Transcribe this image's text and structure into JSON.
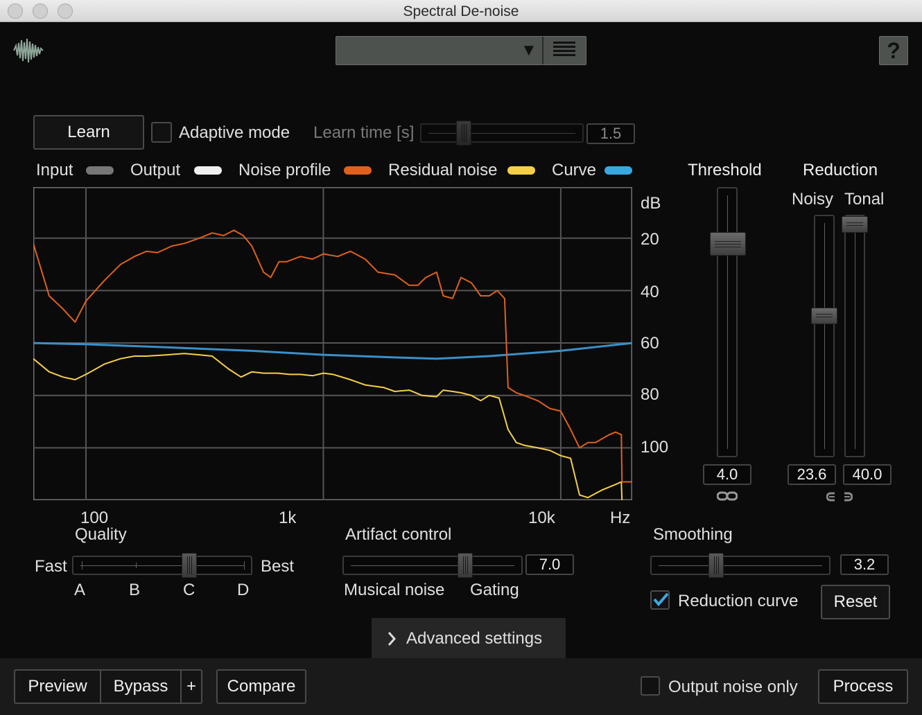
{
  "window": {
    "title": "Spectral De-noise"
  },
  "icons": {
    "logo": "waveform-logo-icon",
    "dropdown": "triangle-down-icon",
    "presets": "list-icon",
    "help": "question-icon",
    "link": "link-icon",
    "checkmark": "checkmark-icon",
    "chevron": "chevron-right-icon"
  },
  "colors": {
    "input": "#777777",
    "output": "#f0f0f0",
    "noise_profile": "#e0601e",
    "residual_noise": "#f6cf49",
    "curve": "#3a90c8",
    "check": "#3aa8e0"
  },
  "header": {
    "help_label": "?"
  },
  "learn": {
    "button_label": "Learn",
    "adaptive_label": "Adaptive mode",
    "adaptive_checked": false,
    "learn_time_label": "Learn time [s]",
    "learn_time_value": "1.5",
    "learn_time_fraction": 0.24
  },
  "legend": [
    {
      "label": "Input"
    },
    {
      "label": "Output"
    },
    {
      "label": "Noise profile"
    },
    {
      "label": "Residual noise"
    },
    {
      "label": "Curve"
    }
  ],
  "plot": {
    "y_unit": "dB",
    "y_ticks": [
      "20",
      "40",
      "60",
      "80",
      "100"
    ],
    "x_ticks": [
      "100",
      "1k",
      "10k"
    ],
    "x_unit": "Hz"
  },
  "chart_data": {
    "type": "line",
    "x_scale": "log",
    "xlim": [
      60,
      20000
    ],
    "ylim": [
      -120,
      -0.5
    ],
    "y_tick_values": [
      -20,
      -40,
      -60,
      -80,
      -100
    ],
    "x_tick_values": [
      100,
      1000,
      10000
    ],
    "series": [
      {
        "name": "Noise profile",
        "points": [
          [
            60,
            -22
          ],
          [
            70,
            -42
          ],
          [
            80,
            -47
          ],
          [
            90,
            -52
          ],
          [
            100,
            -44
          ],
          [
            120,
            -36
          ],
          [
            140,
            -30
          ],
          [
            160,
            -27
          ],
          [
            180,
            -25
          ],
          [
            200,
            -25.5
          ],
          [
            230,
            -23
          ],
          [
            260,
            -22
          ],
          [
            300,
            -20
          ],
          [
            340,
            -18
          ],
          [
            380,
            -19
          ],
          [
            420,
            -17
          ],
          [
            460,
            -19
          ],
          [
            500,
            -23
          ],
          [
            560,
            -33
          ],
          [
            600,
            -35
          ],
          [
            650,
            -29
          ],
          [
            700,
            -29
          ],
          [
            800,
            -27
          ],
          [
            900,
            -28
          ],
          [
            1000,
            -26
          ],
          [
            1150,
            -27
          ],
          [
            1300,
            -25
          ],
          [
            1500,
            -28
          ],
          [
            1700,
            -33
          ],
          [
            2000,
            -34
          ],
          [
            2300,
            -38
          ],
          [
            2500,
            -38
          ],
          [
            2700,
            -35
          ],
          [
            3000,
            -33
          ],
          [
            3200,
            -42
          ],
          [
            3500,
            -43
          ],
          [
            3800,
            -35
          ],
          [
            4200,
            -37
          ],
          [
            4600,
            -42
          ],
          [
            5000,
            -42
          ],
          [
            5400,
            -40
          ],
          [
            5800,
            -43
          ],
          [
            6000,
            -77
          ],
          [
            6500,
            -79
          ],
          [
            7000,
            -80
          ],
          [
            8000,
            -82
          ],
          [
            9000,
            -85
          ],
          [
            10000,
            -86
          ],
          [
            11000,
            -93
          ],
          [
            12000,
            -100
          ],
          [
            13000,
            -98
          ],
          [
            14000,
            -98
          ],
          [
            16000,
            -95
          ],
          [
            17000,
            -94
          ],
          [
            18000,
            -95
          ],
          [
            18100,
            -113
          ],
          [
            20000,
            -113
          ]
        ]
      },
      {
        "name": "Residual noise",
        "points": [
          [
            60,
            -66
          ],
          [
            70,
            -71
          ],
          [
            80,
            -73
          ],
          [
            90,
            -74
          ],
          [
            100,
            -72
          ],
          [
            120,
            -68
          ],
          [
            140,
            -66
          ],
          [
            160,
            -65
          ],
          [
            180,
            -65
          ],
          [
            220,
            -64.5
          ],
          [
            260,
            -64
          ],
          [
            300,
            -64.5
          ],
          [
            340,
            -65
          ],
          [
            400,
            -70
          ],
          [
            450,
            -73
          ],
          [
            500,
            -71
          ],
          [
            560,
            -71.5
          ],
          [
            640,
            -71.5
          ],
          [
            720,
            -72
          ],
          [
            800,
            -72
          ],
          [
            900,
            -72.5
          ],
          [
            1000,
            -71.5
          ],
          [
            1100,
            -72
          ],
          [
            1300,
            -74
          ],
          [
            1500,
            -76
          ],
          [
            1800,
            -77
          ],
          [
            2000,
            -78.5
          ],
          [
            2300,
            -78
          ],
          [
            2600,
            -80
          ],
          [
            3000,
            -80.5
          ],
          [
            3200,
            -78
          ],
          [
            3500,
            -78.5
          ],
          [
            3800,
            -79
          ],
          [
            4200,
            -80
          ],
          [
            4600,
            -82
          ],
          [
            5000,
            -80
          ],
          [
            5500,
            -81
          ],
          [
            6000,
            -93
          ],
          [
            6500,
            -98
          ],
          [
            7000,
            -99
          ],
          [
            8000,
            -100
          ],
          [
            9000,
            -101
          ],
          [
            10000,
            -103
          ],
          [
            11000,
            -104
          ],
          [
            12000,
            -118
          ],
          [
            13000,
            -119
          ],
          [
            15000,
            -116
          ],
          [
            17000,
            -114
          ],
          [
            18000,
            -113
          ],
          [
            18100,
            -120
          ]
        ]
      },
      {
        "name": "Curve",
        "points": [
          [
            60,
            -60
          ],
          [
            100,
            -60.5
          ],
          [
            200,
            -61.5
          ],
          [
            500,
            -63
          ],
          [
            1000,
            -64.5
          ],
          [
            2000,
            -65.5
          ],
          [
            3000,
            -66
          ],
          [
            5000,
            -65
          ],
          [
            10000,
            -63
          ],
          [
            20000,
            -60
          ]
        ]
      }
    ]
  },
  "threshold": {
    "label": "Threshold",
    "value": "4.0",
    "fraction": 0.82
  },
  "reduction": {
    "label": "Reduction",
    "noisy_label": "Noisy",
    "tonal_label": "Tonal",
    "noisy_value": "23.6",
    "tonal_value": "40.0",
    "noisy_fraction": 0.59,
    "tonal_fraction": 1.0
  },
  "quality": {
    "label": "Quality",
    "left_label": "Fast",
    "right_label": "Best",
    "options": [
      "A",
      "B",
      "C",
      "D"
    ],
    "selected": "C"
  },
  "artifact": {
    "label": "Artifact control",
    "value": "7.0",
    "left_label": "Musical noise",
    "right_label": "Gating",
    "fraction": 0.7
  },
  "smoothing": {
    "label": "Smoothing",
    "value": "3.2",
    "fraction": 0.35,
    "curve_label": "Reduction curve",
    "curve_checked": true,
    "reset_label": "Reset"
  },
  "advanced": {
    "label": "Advanced settings"
  },
  "footer": {
    "preview_label": "Preview",
    "bypass_label": "Bypass",
    "plus_label": "+",
    "compare_label": "Compare",
    "output_noise_label": "Output noise only",
    "output_noise_checked": false,
    "process_label": "Process"
  }
}
